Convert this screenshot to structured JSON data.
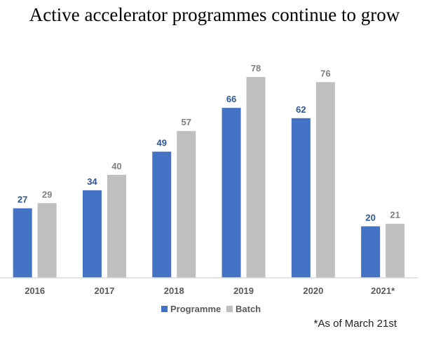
{
  "chart_data": {
    "type": "bar",
    "title": "Active accelerator programmes continue to grow",
    "categories": [
      "2016",
      "2017",
      "2018",
      "2019",
      "2020",
      "2021*"
    ],
    "series": [
      {
        "name": "Programme",
        "color": "#4472C4",
        "label_color": "#2E5597",
        "values": [
          27,
          34,
          49,
          66,
          62,
          20
        ]
      },
      {
        "name": "Batch",
        "color": "#BFBFBF",
        "label_color": "#7F7F7F",
        "values": [
          29,
          40,
          57,
          78,
          76,
          21
        ]
      }
    ],
    "ylim": [
      0,
      85
    ],
    "grid": false,
    "legend_position": "bottom",
    "footnote": "*As of March 21st"
  }
}
